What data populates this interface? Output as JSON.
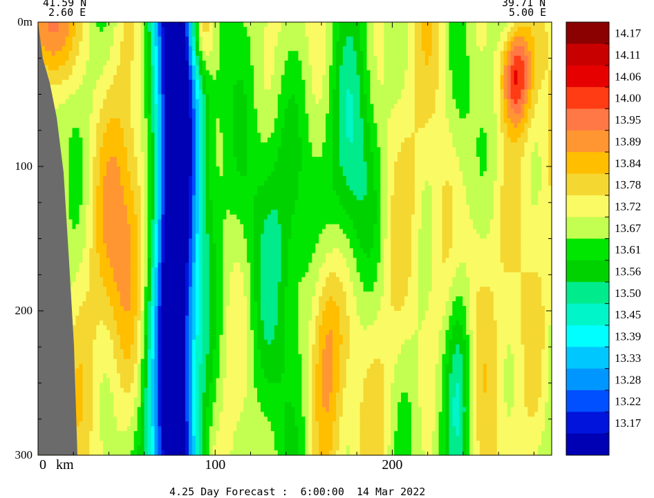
{
  "chart_data": {
    "type": "heatmap",
    "title": "",
    "endpoints": {
      "left": {
        "lat": "41.59 N",
        "lon": "2.60 E"
      },
      "right": {
        "lat": "39.71 N",
        "lon": "5.00 E"
      }
    },
    "x_axis": {
      "unit_label": "km",
      "ticks": [
        0,
        100,
        200
      ],
      "tick_labels": [
        "0",
        "100",
        "200"
      ],
      "range": [
        0,
        290
      ]
    },
    "y_axis": {
      "ticks": [
        0,
        100,
        200,
        300
      ],
      "tick_labels": [
        "0m",
        "100",
        "200",
        "300"
      ],
      "range": [
        0,
        300
      ],
      "inverted": true
    },
    "colorbar": {
      "labels": [
        "14.17",
        "14.11",
        "14.06",
        "14.00",
        "13.95",
        "13.89",
        "13.84",
        "13.78",
        "13.72",
        "13.67",
        "13.61",
        "13.56",
        "13.50",
        "13.45",
        "13.39",
        "13.33",
        "13.28",
        "13.22",
        "13.17"
      ],
      "colors": [
        "#8b0000",
        "#c80000",
        "#e60000",
        "#ff3c14",
        "#ff7846",
        "#ff9632",
        "#ffbe00",
        "#f5d732",
        "#fafa64",
        "#c3ff50",
        "#00e600",
        "#00d200",
        "#00eb8c",
        "#00f5c8",
        "#00ffff",
        "#00c8ff",
        "#0096ff",
        "#0050ff",
        "#0014dc",
        "#0000b4"
      ]
    },
    "bottom_caption": "4.25 Day Forecast :  6:00:00  14 Mar 2022"
  }
}
